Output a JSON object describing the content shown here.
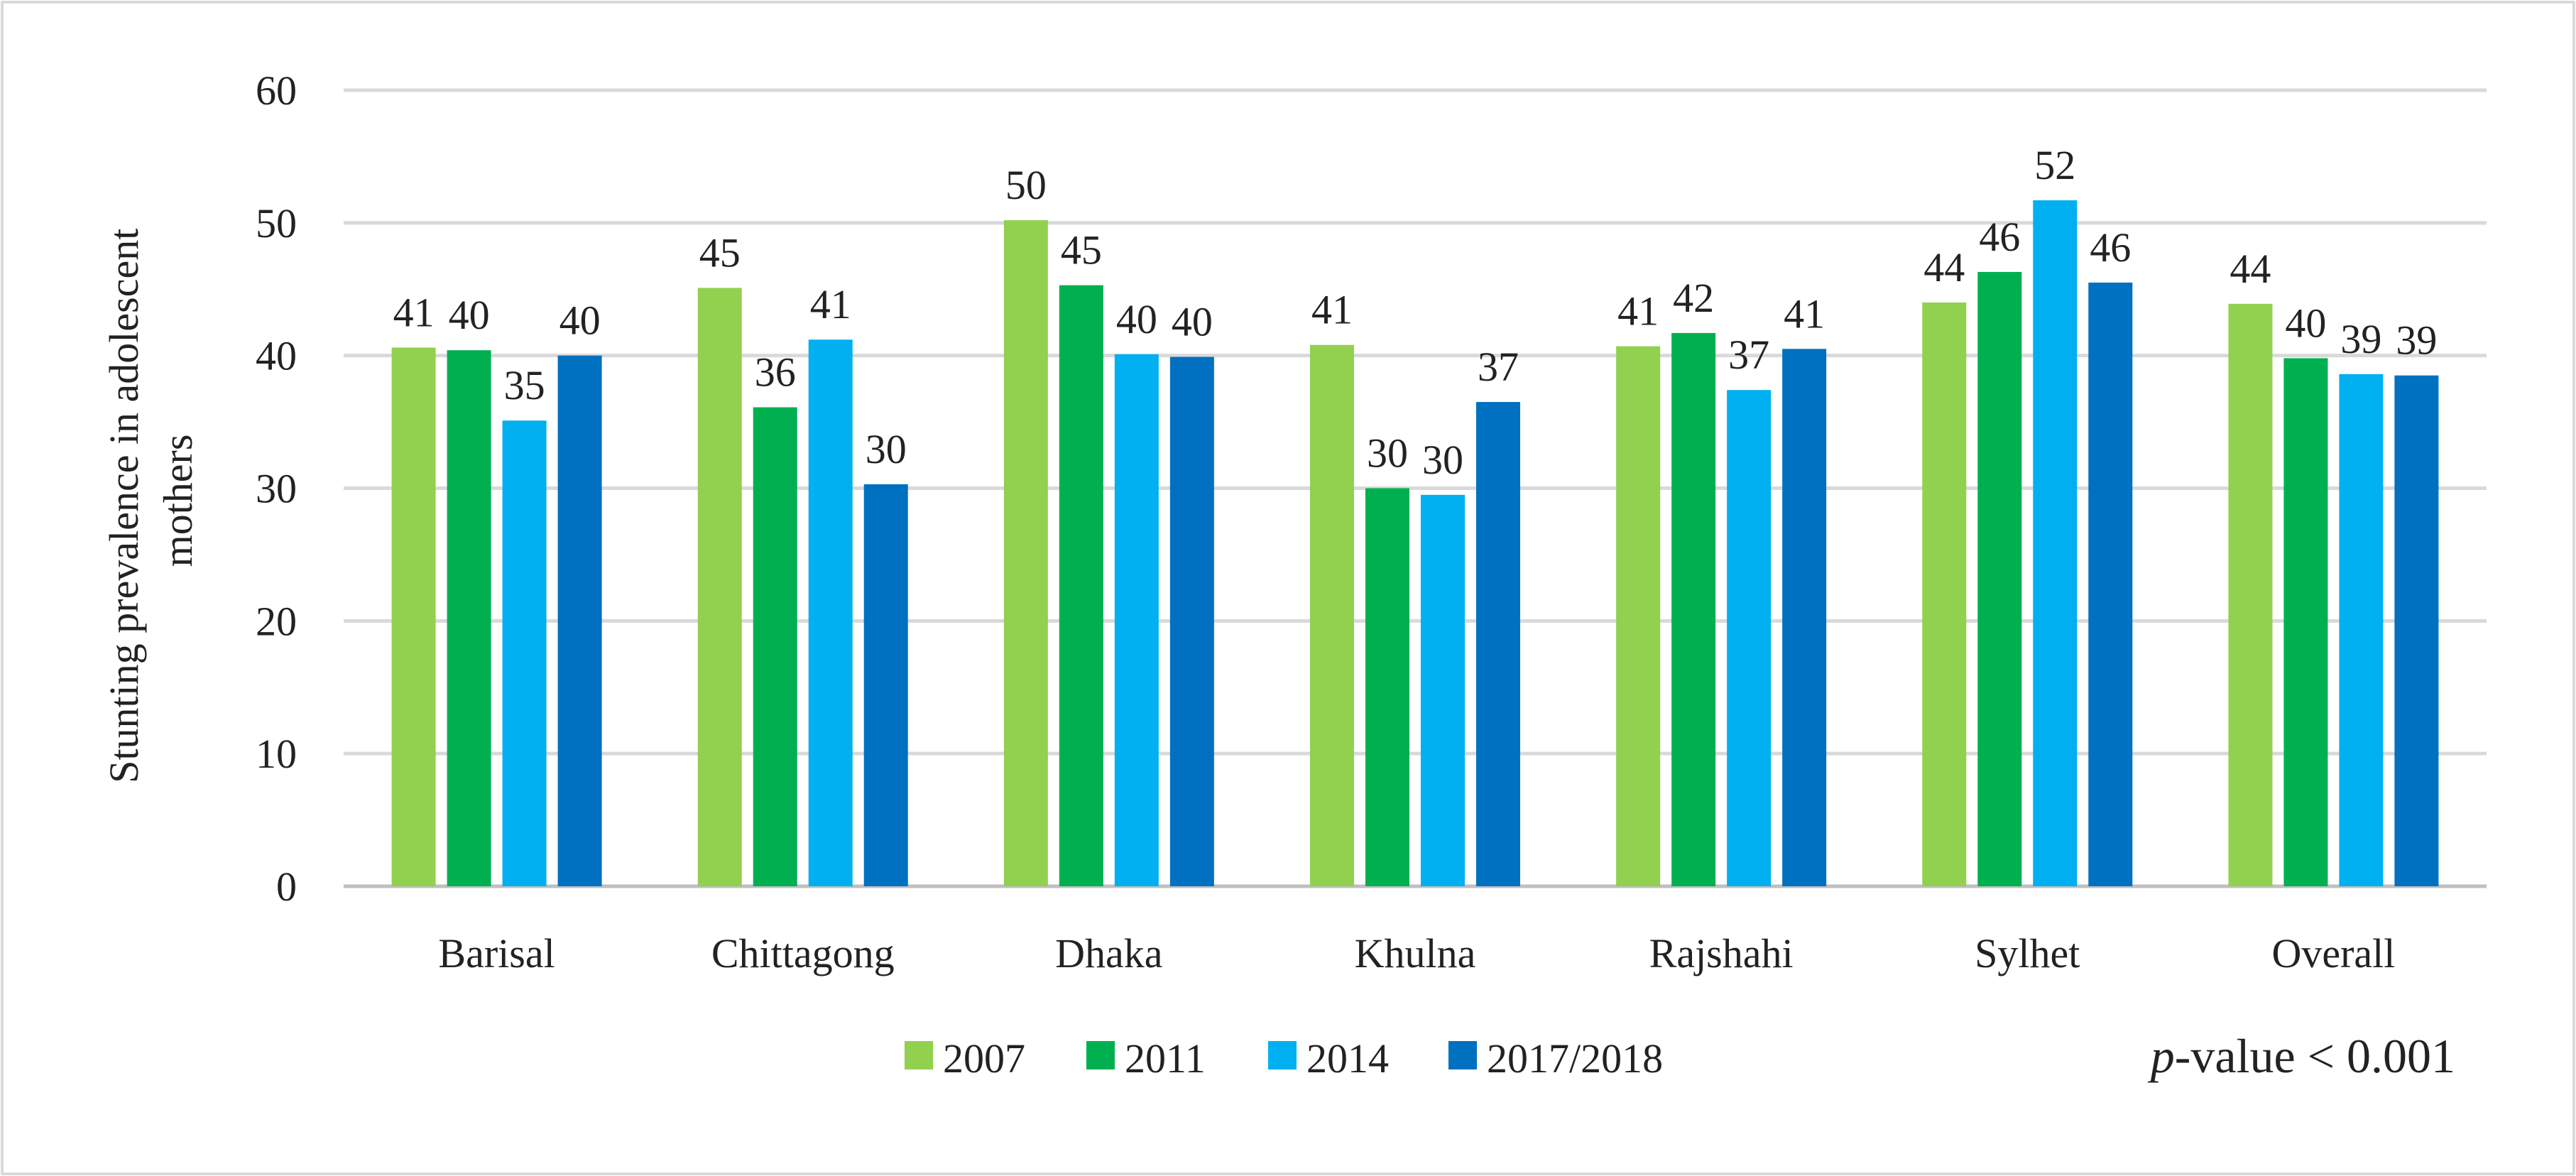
{
  "chart_data": {
    "type": "bar",
    "title": "",
    "xlabel": "",
    "ylabel_lines": [
      "Stunting prevalence in adolescent",
      "mothers"
    ],
    "ylim": [
      0,
      60
    ],
    "yticks": [
      0,
      10,
      20,
      30,
      40,
      50,
      60
    ],
    "grid": true,
    "categories": [
      "Barisal",
      "Chittagong",
      "Dhaka",
      "Khulna",
      "Rajshahi",
      "Sylhet",
      "Overall"
    ],
    "series": [
      {
        "name": "2007",
        "color": "#92d050",
        "values": [
          40.6,
          45.1,
          50.2,
          40.8,
          40.7,
          44.0,
          43.9
        ],
        "labels": [
          "41",
          "45",
          "50",
          "41",
          "41",
          "44",
          "44"
        ]
      },
      {
        "name": "2011",
        "color": "#00b050",
        "values": [
          40.4,
          36.1,
          45.3,
          30.0,
          41.7,
          46.3,
          39.8
        ],
        "labels": [
          "40",
          "36",
          "45",
          "30",
          "42",
          "46",
          "40"
        ]
      },
      {
        "name": "2014",
        "color": "#00b0f0",
        "values": [
          35.1,
          41.2,
          40.1,
          29.5,
          37.4,
          51.7,
          38.6
        ],
        "labels": [
          "35",
          "41",
          "40",
          "30",
          "37",
          "52",
          "39"
        ]
      },
      {
        "name": "2017/2018",
        "color": "#0070c0",
        "values": [
          40.0,
          30.3,
          39.9,
          36.5,
          40.5,
          45.5,
          38.5
        ],
        "labels": [
          "40",
          "30",
          "40",
          "37",
          "41",
          "46",
          "39"
        ]
      }
    ],
    "legend_position": "bottom",
    "annotation": {
      "italic": "p",
      "text": "-value < 0.001"
    }
  }
}
